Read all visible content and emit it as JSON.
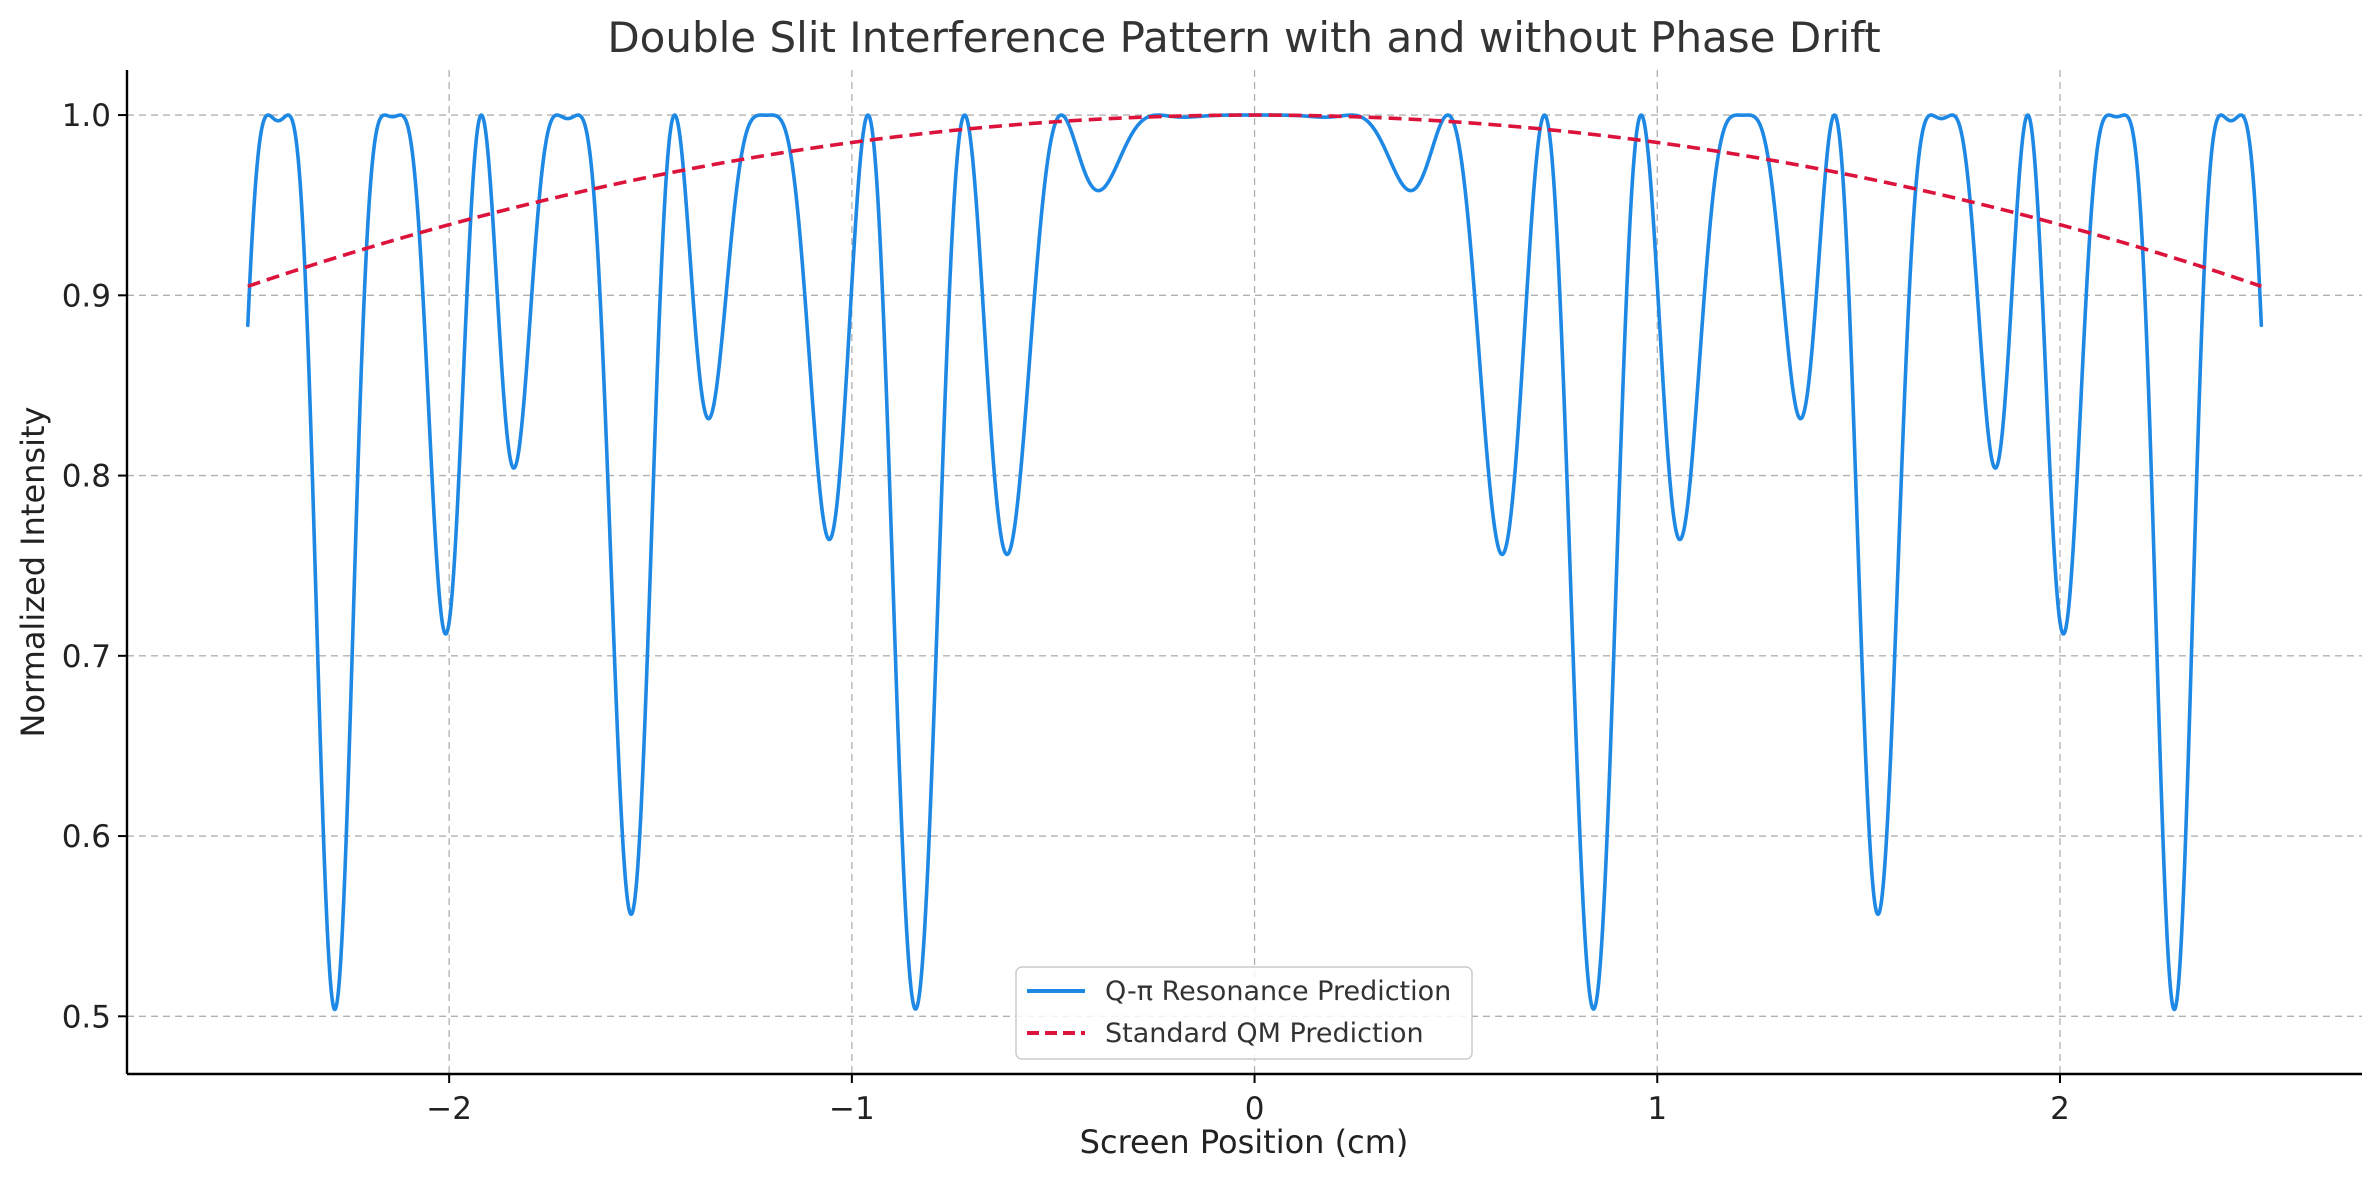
{
  "chart_data": {
    "type": "line",
    "title": "Double Slit Interference Pattern with and without Phase Drift",
    "xlabel": "Screen Position (cm)",
    "ylabel": "Normalized Intensity",
    "xlim": [
      -2.8,
      2.75
    ],
    "ylim": [
      0.468,
      1.025
    ],
    "x_ticks": [
      -2,
      -1,
      0,
      1,
      2
    ],
    "x_tick_labels": [
      "−2",
      "−1",
      "0",
      "1",
      "2"
    ],
    "y_ticks": [
      0.5,
      0.6,
      0.7,
      0.8,
      0.9,
      1.0
    ],
    "y_tick_labels": [
      "0.5",
      "0.6",
      "0.7",
      "0.8",
      "0.9",
      "1.0"
    ],
    "grid": true,
    "legend_position": "bottom-center",
    "series": [
      {
        "name": "Q-π Resonance Prediction",
        "color": "#1e88e5",
        "style": "solid",
        "x_range": [
          -2.5,
          2.5
        ],
        "model": "0.5 + 0.5*cos^2(pi*x/0.24) + 0.5*sin^2(pi*x/0.24)*cos^2(pi*x^2/1.5)"
      },
      {
        "name": "Standard QM Prediction",
        "color": "#dc143c",
        "style": "dashed",
        "x_range": [
          -2.5,
          2.5
        ],
        "model": "1 - 0.0152*x^2"
      }
    ]
  }
}
